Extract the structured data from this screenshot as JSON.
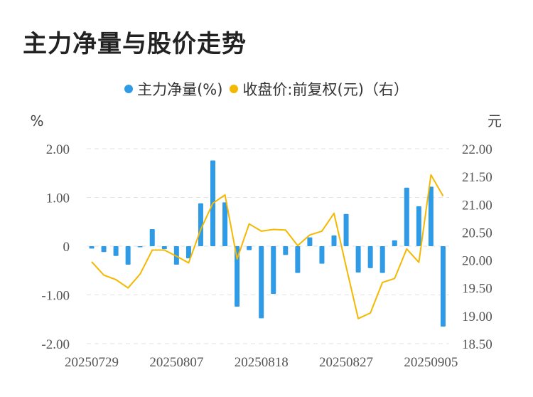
{
  "title": "主力净量与股价走势",
  "legend": {
    "bar_label": "主力净量(%)",
    "line_label": "收盘价:前复权(元)（右）"
  },
  "colors": {
    "bar": "#2f9ae6",
    "line": "#f5b800",
    "grid": "#e2e2e2"
  },
  "chart_data": {
    "type": "bar",
    "y_left_label": "%",
    "y_right_label": "元",
    "y_left_ticks": [
      "2.00",
      "1.00",
      "0",
      "-1.00",
      "-2.00"
    ],
    "y_right_ticks": [
      "22.00",
      "21.50",
      "21.00",
      "20.50",
      "20.00",
      "19.50",
      "19.00",
      "18.50"
    ],
    "ylim_left": [
      -2,
      2
    ],
    "ylim_right": [
      18.5,
      22
    ],
    "x_tick_labels": [
      "20250729",
      "20250807",
      "20250818",
      "20250827",
      "20250905"
    ],
    "x_tick_index": [
      0,
      7,
      14,
      21,
      28
    ],
    "grid": true,
    "series": [
      {
        "name": "主力净量(%)",
        "type": "bar",
        "axis": "left",
        "values": [
          -0.05,
          -0.12,
          -0.2,
          -0.38,
          -0.02,
          0.35,
          -0.06,
          -0.38,
          -0.25,
          0.88,
          1.76,
          0.9,
          -1.24,
          -0.08,
          -1.48,
          -0.98,
          -0.18,
          -0.55,
          0.18,
          -0.36,
          0.22,
          0.66,
          -0.54,
          -0.45,
          -0.55,
          0.12,
          1.2,
          0.82,
          1.22,
          -1.65
        ]
      },
      {
        "name": "收盘价:前复权(元)（右）",
        "type": "line",
        "axis": "right",
        "values": [
          19.97,
          19.73,
          19.65,
          19.5,
          19.75,
          20.18,
          20.18,
          20.07,
          19.95,
          20.55,
          21.02,
          21.17,
          20.02,
          20.65,
          20.52,
          20.55,
          20.54,
          20.26,
          20.45,
          20.52,
          20.84,
          19.88,
          18.95,
          19.05,
          19.6,
          19.67,
          20.2,
          19.96,
          21.53,
          21.15
        ]
      }
    ]
  }
}
